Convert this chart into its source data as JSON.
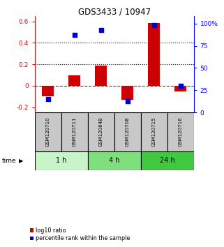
{
  "title": "GDS3433 / 10947",
  "samples": [
    "GSM120710",
    "GSM120711",
    "GSM120648",
    "GSM120708",
    "GSM120715",
    "GSM120716"
  ],
  "log10_ratio": [
    -0.1,
    0.1,
    0.185,
    -0.13,
    0.585,
    -0.05
  ],
  "percentile_rank": [
    15,
    87,
    93,
    13,
    98,
    30
  ],
  "ylim_left": [
    -0.25,
    0.65
  ],
  "ylim_right": [
    0,
    108.33
  ],
  "yticks_left": [
    -0.2,
    0.0,
    0.2,
    0.4,
    0.6
  ],
  "ytick_labels_left": [
    "-0.2",
    "0",
    "0.2",
    "0.4",
    "0.6"
  ],
  "yticks_right": [
    0,
    25,
    50,
    75,
    100
  ],
  "ytick_labels_right": [
    "0",
    "25",
    "50",
    "75",
    "100%"
  ],
  "hlines": [
    0.2,
    0.4
  ],
  "time_groups": [
    {
      "label": "1 h",
      "start": 0,
      "end": 2,
      "color": "#c8f5c8"
    },
    {
      "label": "4 h",
      "start": 2,
      "end": 4,
      "color": "#7de07d"
    },
    {
      "label": "24 h",
      "start": 4,
      "end": 6,
      "color": "#40c840"
    }
  ],
  "bar_color": "#cc0000",
  "square_color": "#0000cc",
  "bar_width": 0.45,
  "square_size": 18,
  "zero_line_color": "#cc0000",
  "dotted_line_color": "#000000",
  "bg_color": "#ffffff",
  "sample_bg_color": "#c8c8c8",
  "legend_log10_label": "log10 ratio",
  "legend_pct_label": "percentile rank within the sample",
  "time_label": "time"
}
